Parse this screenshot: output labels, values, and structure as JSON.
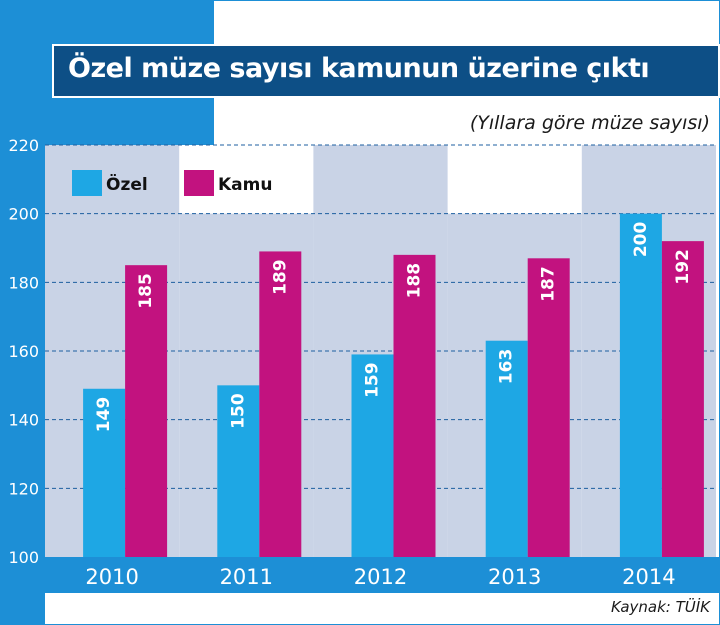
{
  "chart_data": {
    "type": "bar",
    "title": "Özel müze sayısı kamunun üzerine çıktı",
    "subtitle": "(Yıllara göre müze sayısı)",
    "source": "Kaynak: TÜİK",
    "categories": [
      "2010",
      "2011",
      "2012",
      "2013",
      "2014"
    ],
    "series": [
      {
        "name": "Özel",
        "values": [
          149,
          150,
          159,
          163,
          200
        ],
        "color": "#1ea7e4"
      },
      {
        "name": "Kamu",
        "values": [
          185,
          189,
          188,
          187,
          192
        ],
        "color": "#c2127f"
      }
    ],
    "ylim": [
      100,
      220
    ],
    "yticks": [
      100,
      120,
      140,
      160,
      180,
      200,
      220
    ],
    "grid": true,
    "legend_position": "top-left"
  },
  "colors": {
    "frame_blue": "#1d8fd6",
    "title_bg": "#0d4f86",
    "band": "#c9d3e6",
    "grid": "#1d5fa0",
    "axis_bar": "#1d5fa0"
  }
}
